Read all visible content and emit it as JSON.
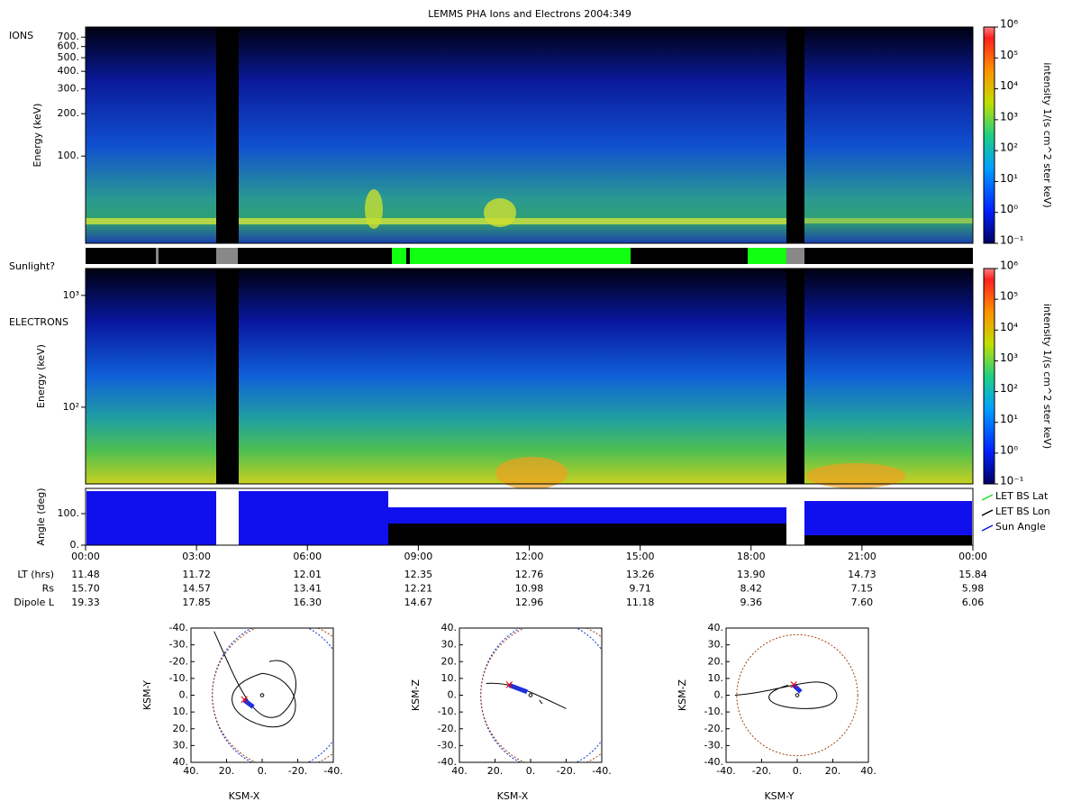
{
  "title": "LEMMS PHA Ions and Electrons  2004:349",
  "ions": {
    "label": "IONS",
    "y_label": "Energy (keV)",
    "log": true,
    "ylim": [
      24,
      826
    ],
    "yticks": [
      {
        "value": 700,
        "label": "700."
      },
      {
        "value": 600,
        "label": "600."
      },
      {
        "value": 500,
        "label": "500."
      },
      {
        "value": 400,
        "label": "400."
      },
      {
        "value": 300,
        "label": "300."
      },
      {
        "value": 200,
        "label": "200."
      },
      {
        "value": 100,
        "label": "100."
      }
    ]
  },
  "sunlight": {
    "label": "Sunlight?"
  },
  "electrons": {
    "label": "ELECTRONS",
    "y_label": "Energy (keV)",
    "log": true,
    "ylim": [
      20.6,
      1740
    ],
    "yticks": [
      {
        "value": 1000,
        "label": "10³"
      },
      {
        "value": 100,
        "label": "10²"
      }
    ]
  },
  "colorbar": {
    "label": "intensity 1/(s cm^2 ster keV)",
    "log": true,
    "ylim": [
      0.1,
      1000000
    ],
    "yticks": [
      {
        "value": 0.1,
        "label": "10⁻¹"
      },
      {
        "value": 1,
        "label": "10⁰"
      },
      {
        "value": 10,
        "label": "10¹"
      },
      {
        "value": 100,
        "label": "10²"
      },
      {
        "value": 1000,
        "label": "10³"
      },
      {
        "value": 10000,
        "label": "10⁴"
      },
      {
        "value": 100000,
        "label": "10⁵"
      },
      {
        "value": 1000000,
        "label": "10⁶"
      }
    ]
  },
  "angle": {
    "y_label": "Angle (deg)",
    "ylim": [
      0,
      180
    ],
    "yticks": [
      {
        "value": 0,
        "label": "0."
      },
      {
        "value": 100,
        "label": "100."
      }
    ],
    "legend": [
      {
        "name": "LET BS Lat",
        "color": "#22dd22"
      },
      {
        "name": "LET BS Lon",
        "color": "#000000"
      },
      {
        "name": "Sun Angle",
        "color": "#1010ee"
      }
    ]
  },
  "x_axis": {
    "ticks": [
      "00:00",
      "03:00",
      "06:00",
      "09:00",
      "12:00",
      "15:00",
      "18:00",
      "21:00",
      "00:00"
    ]
  },
  "ephemeris": [
    {
      "label": "LT (hrs)",
      "values": [
        "11.48",
        "11.72",
        "12.01",
        "12.35",
        "12.76",
        "13.26",
        "13.90",
        "14.73",
        "15.84"
      ]
    },
    {
      "label": "Rs",
      "values": [
        "15.70",
        "14.57",
        "13.41",
        "12.21",
        "10.98",
        "9.71",
        "8.42",
        "7.15",
        "5.98"
      ]
    },
    {
      "label": "Dipole L",
      "values": [
        "19.33",
        "17.85",
        "16.30",
        "14.67",
        "12.96",
        "11.18",
        "9.36",
        "7.60",
        "6.06"
      ]
    }
  ],
  "orbits": [
    {
      "x_label": "KSM-X",
      "y_label": "KSM-Y",
      "xlim": [
        40,
        -40
      ],
      "ylim": [
        40,
        -40
      ],
      "xticks": [
        {
          "value": 40,
          "label": "40."
        },
        {
          "value": 20,
          "label": "20."
        },
        {
          "value": 0,
          "label": "0."
        },
        {
          "value": -20,
          "label": "-20."
        },
        {
          "value": -40,
          "label": "-40."
        }
      ],
      "yticks": [
        {
          "value": -40,
          "label": "-40."
        },
        {
          "value": -30,
          "label": "-30."
        },
        {
          "value": -20,
          "label": "-20."
        },
        {
          "value": -10,
          "label": "-10."
        },
        {
          "value": 0,
          "label": "0."
        },
        {
          "value": 10,
          "label": "10."
        },
        {
          "value": 20,
          "label": "20."
        },
        {
          "value": 30,
          "label": "30."
        },
        {
          "value": 40,
          "label": "40."
        }
      ]
    },
    {
      "x_label": "KSM-X",
      "y_label": "KSM-Z",
      "xlim": [
        40,
        -40
      ],
      "ylim": [
        -40,
        40
      ],
      "xticks": [
        {
          "value": 40,
          "label": "40."
        },
        {
          "value": 20,
          "label": "20."
        },
        {
          "value": 0,
          "label": "0."
        },
        {
          "value": -20,
          "label": "-20."
        },
        {
          "value": -40,
          "label": "-40."
        }
      ],
      "yticks": [
        {
          "value": 40,
          "label": "40."
        },
        {
          "value": 30,
          "label": "30."
        },
        {
          "value": 20,
          "label": "20."
        },
        {
          "value": 10,
          "label": "10."
        },
        {
          "value": 0,
          "label": "0."
        },
        {
          "value": -10,
          "label": "-10."
        },
        {
          "value": -20,
          "label": "-20."
        },
        {
          "value": -30,
          "label": "-30."
        },
        {
          "value": -40,
          "label": "-40."
        }
      ]
    },
    {
      "x_label": "KSM-Y",
      "y_label": "KSM-Z",
      "xlim": [
        -40,
        40
      ],
      "ylim": [
        -40,
        40
      ],
      "xticks": [
        {
          "value": -40,
          "label": "-40."
        },
        {
          "value": -20,
          "label": "-20."
        },
        {
          "value": 0,
          "label": "0."
        },
        {
          "value": 20,
          "label": "20."
        },
        {
          "value": 40,
          "label": "40."
        }
      ],
      "yticks": [
        {
          "value": 40,
          "label": "40."
        },
        {
          "value": 30,
          "label": "30."
        },
        {
          "value": 20,
          "label": "20."
        },
        {
          "value": 10,
          "label": "10."
        },
        {
          "value": 0,
          "label": "0."
        },
        {
          "value": -10,
          "label": "-10."
        },
        {
          "value": -20,
          "label": "-20."
        },
        {
          "value": -30,
          "label": "-30."
        },
        {
          "value": -40,
          "label": "-40."
        }
      ]
    }
  ]
}
